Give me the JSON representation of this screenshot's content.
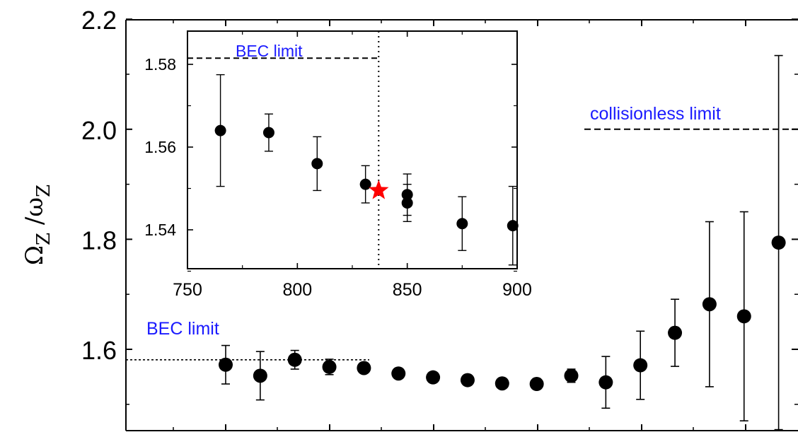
{
  "chart_data": [
    {
      "id": "main",
      "type": "scatter",
      "ylabel_main": "Ω",
      "ylabel_main_sub": "Z",
      "ylabel_sep": " /ω",
      "ylabel_sep_sub": "Z",
      "ylim": [
        1.45,
        2.2
      ],
      "y_ticks": [
        "1.6",
        "1.8",
        "2.0",
        "2.2"
      ],
      "y_tick_values": [
        1.6,
        1.8,
        2.0,
        2.2
      ],
      "grid": false,
      "x_tick_labels_visible": false,
      "points": [
        {
          "x": 0,
          "y": 1.572,
          "err": 0.035
        },
        {
          "x": 1,
          "y": 1.552,
          "err": 0.044
        },
        {
          "x": 2,
          "y": 1.581,
          "err": 0.017
        },
        {
          "x": 3,
          "y": 1.568,
          "err": 0.014
        },
        {
          "x": 4,
          "y": 1.566,
          "err": 0.0
        },
        {
          "x": 5,
          "y": 1.556,
          "err": 0.0
        },
        {
          "x": 6,
          "y": 1.549,
          "err": 0.0
        },
        {
          "x": 7,
          "y": 1.544,
          "err": 0.0
        },
        {
          "x": 8,
          "y": 1.538,
          "err": 0.0
        },
        {
          "x": 9,
          "y": 1.537,
          "err": 0.0
        },
        {
          "x": 10,
          "y": 1.552,
          "err": 0.012
        },
        {
          "x": 11,
          "y": 1.54,
          "err": 0.047
        },
        {
          "x": 12,
          "y": 1.571,
          "err": 0.062
        },
        {
          "x": 13,
          "y": 1.63,
          "err": 0.061
        },
        {
          "x": 14,
          "y": 1.682,
          "err": 0.15
        },
        {
          "x": 15,
          "y": 1.66,
          "err": 0.19
        },
        {
          "x": 16,
          "y": 1.794,
          "err": 0.34
        }
      ],
      "annotations": [
        {
          "text": "BEC limit",
          "y": 1.581
        },
        {
          "text": "collisionless limit",
          "y": 2.0
        }
      ]
    },
    {
      "id": "inset",
      "type": "scatter",
      "xlim": [
        750,
        900
      ],
      "ylim": [
        1.527,
        1.588
      ],
      "x_ticks": [
        "750",
        "800",
        "850",
        "900"
      ],
      "x_tick_values": [
        750,
        800,
        850,
        900
      ],
      "y_ticks": [
        "1.54",
        "1.56",
        "1.58"
      ],
      "y_tick_values": [
        1.54,
        1.56,
        1.58
      ],
      "grid": false,
      "points": [
        {
          "x": 765,
          "y": 1.564,
          "err": 0.0135
        },
        {
          "x": 787,
          "y": 1.5635,
          "err": 0.0045
        },
        {
          "x": 809,
          "y": 1.556,
          "err": 0.0065
        },
        {
          "x": 831,
          "y": 1.551,
          "err": 0.0045
        },
        {
          "x": 850,
          "y": 1.5485,
          "err": 0.005
        },
        {
          "x": 850,
          "y": 1.5465,
          "err": 0.0045
        },
        {
          "x": 875,
          "y": 1.5415,
          "err": 0.0065
        },
        {
          "x": 898,
          "y": 1.541,
          "err": 0.0095
        }
      ],
      "star": {
        "x": 837,
        "y": 1.5495,
        "color": "#ff0000"
      },
      "vertical_line_x": 837,
      "annotations": [
        {
          "text": "BEC limit",
          "y": 1.5815
        }
      ]
    }
  ]
}
